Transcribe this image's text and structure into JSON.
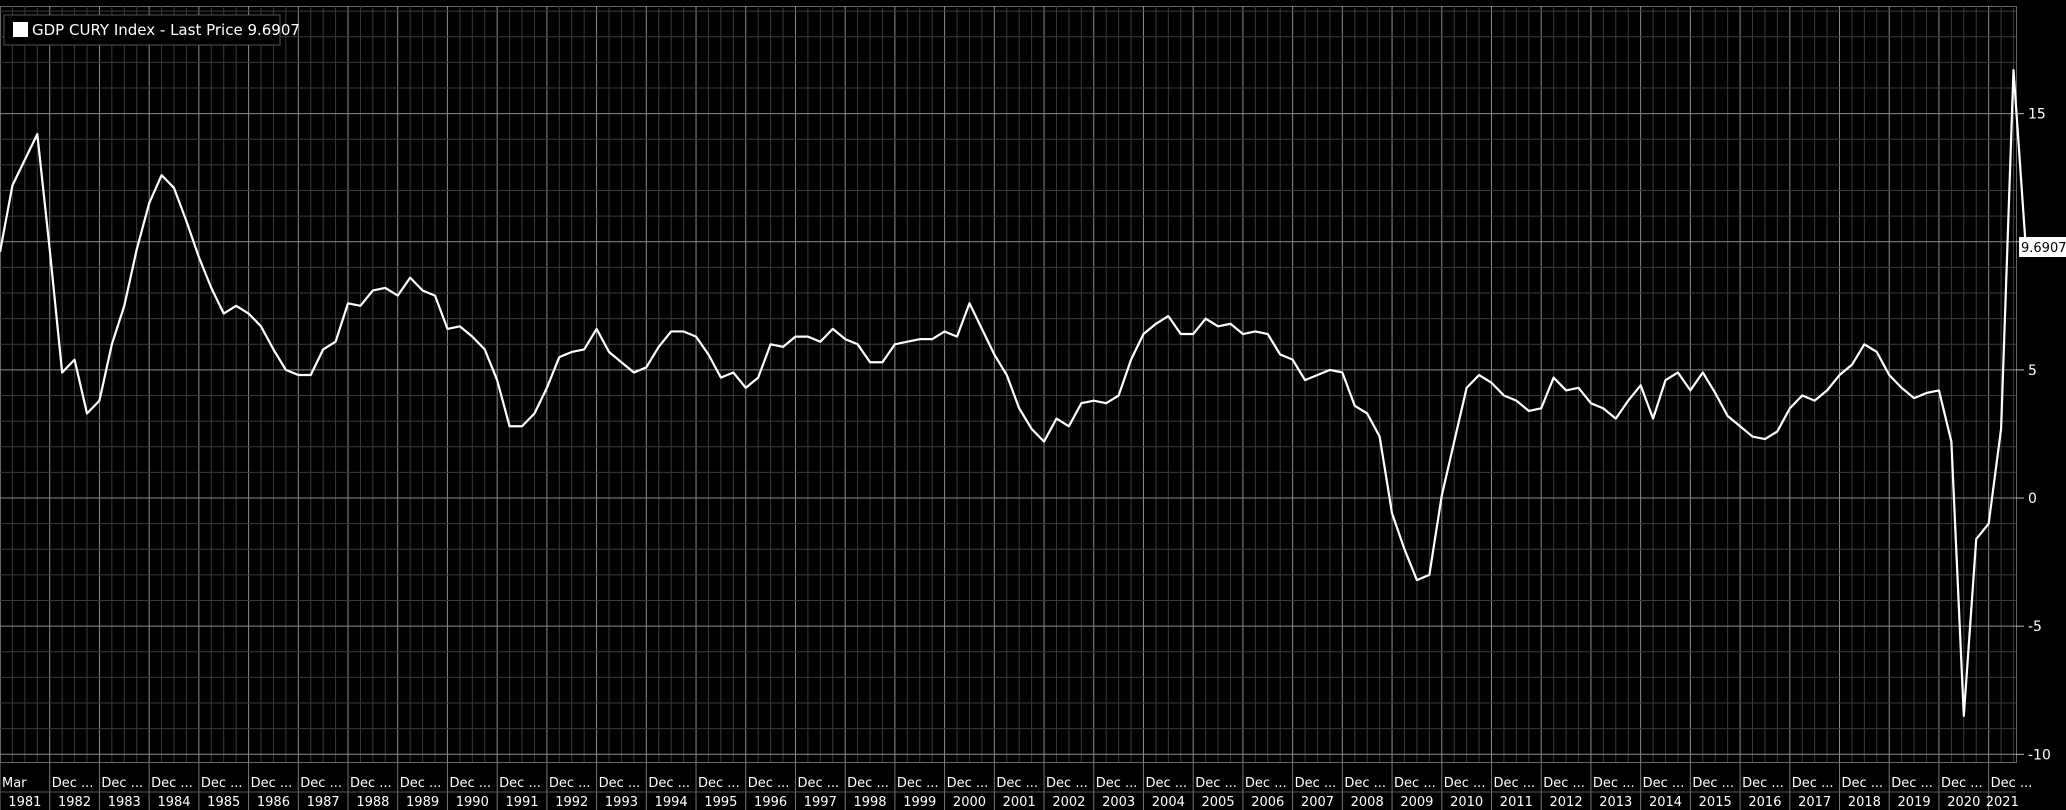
{
  "legend": {
    "text": "GDP CURY Index - Last Price 9.6907"
  },
  "last_price_label": "9.6907",
  "chart_data": {
    "type": "line",
    "series": [
      {
        "name": "GDP CURY Index - Last Price 9.6907",
        "color": "#ffffff",
        "start_year": 1981,
        "start_quarter": 1,
        "values": [
          9.6,
          12.2,
          13.2,
          14.2,
          9.7,
          4.9,
          5.4,
          3.3,
          3.8,
          6.0,
          7.5,
          9.7,
          11.5,
          12.6,
          12.1,
          10.8,
          9.4,
          8.2,
          7.2,
          7.5,
          7.2,
          6.7,
          5.8,
          5.0,
          4.8,
          4.8,
          5.8,
          6.1,
          7.6,
          7.5,
          8.1,
          8.2,
          7.9,
          8.6,
          8.1,
          7.9,
          6.6,
          6.7,
          6.3,
          5.8,
          4.6,
          2.8,
          2.8,
          3.3,
          4.3,
          5.5,
          5.7,
          5.8,
          6.6,
          5.7,
          5.3,
          4.9,
          5.1,
          5.9,
          6.5,
          6.5,
          6.3,
          5.6,
          4.7,
          4.9,
          4.3,
          4.7,
          6.0,
          5.9,
          6.3,
          6.3,
          6.1,
          6.6,
          6.2,
          6.0,
          5.3,
          5.3,
          6.0,
          6.1,
          6.2,
          6.2,
          6.5,
          6.3,
          7.6,
          6.6,
          5.6,
          4.8,
          3.5,
          2.7,
          2.2,
          3.1,
          2.8,
          3.7,
          3.8,
          3.7,
          4.0,
          5.4,
          6.4,
          6.8,
          7.1,
          6.4,
          6.4,
          7.0,
          6.7,
          6.8,
          6.4,
          6.5,
          6.4,
          5.6,
          5.4,
          4.6,
          4.8,
          5.0,
          4.9,
          3.6,
          3.3,
          2.4,
          -0.6,
          -2.0,
          -3.2,
          -3.0,
          0.1,
          2.2,
          4.3,
          4.8,
          4.5,
          4.0,
          3.8,
          3.4,
          3.5,
          4.7,
          4.2,
          4.3,
          3.7,
          3.5,
          3.1,
          3.8,
          4.4,
          3.1,
          4.6,
          4.9,
          4.2,
          4.9,
          4.1,
          3.2,
          2.8,
          2.4,
          2.3,
          2.6,
          3.5,
          4.0,
          3.8,
          4.2,
          4.8,
          5.2,
          6.0,
          5.7,
          4.8,
          4.3,
          3.9,
          4.1,
          4.2,
          2.2,
          -8.5,
          -1.6,
          -1.0,
          2.7,
          16.7,
          9.6907
        ]
      }
    ],
    "y_ticks": [
      15,
      10,
      5,
      0,
      -5,
      -10
    ],
    "ylim": [
      -10.3,
      19.2
    ],
    "x_top_labels": [
      "Mar",
      "Dec ...",
      "Dec ...",
      "Dec ...",
      "Dec ...",
      "Dec ...",
      "Dec ...",
      "Dec ...",
      "Dec ...",
      "Dec ...",
      "Dec ...",
      "Dec ...",
      "Dec ...",
      "Dec ...",
      "Dec ...",
      "Dec ...",
      "Dec ...",
      "Dec ...",
      "Dec ...",
      "Dec ...",
      "Dec ...",
      "Dec ...",
      "Dec ...",
      "Dec ...",
      "Dec ...",
      "Dec ...",
      "Dec ...",
      "Dec ...",
      "Dec ...",
      "Dec ...",
      "Dec ...",
      "Dec ...",
      "Dec ...",
      "Dec ...",
      "Dec ...",
      "Dec ...",
      "Dec ...",
      "Dec ...",
      "Dec ...",
      "Dec ...",
      "Dec ..."
    ],
    "x_year_labels": [
      "1981",
      "1982",
      "1983",
      "1984",
      "1985",
      "1986",
      "1987",
      "1988",
      "1989",
      "1990",
      "1991",
      "1992",
      "1993",
      "1994",
      "1995",
      "1996",
      "1997",
      "1998",
      "1999",
      "2000",
      "2001",
      "2002",
      "2003",
      "2004",
      "2005",
      "2006",
      "2007",
      "2008",
      "2009",
      "2010",
      "2011",
      "2012",
      "2013",
      "2014",
      "2015",
      "2016",
      "2017",
      "2018",
      "2019",
      "2020",
      "2021"
    ],
    "grid": true,
    "legend_position": "top-left",
    "colors": {
      "background": "#000000",
      "line": "#ffffff",
      "grid": "#8a8a8a",
      "minor_grid": "#3a3a3a"
    }
  }
}
